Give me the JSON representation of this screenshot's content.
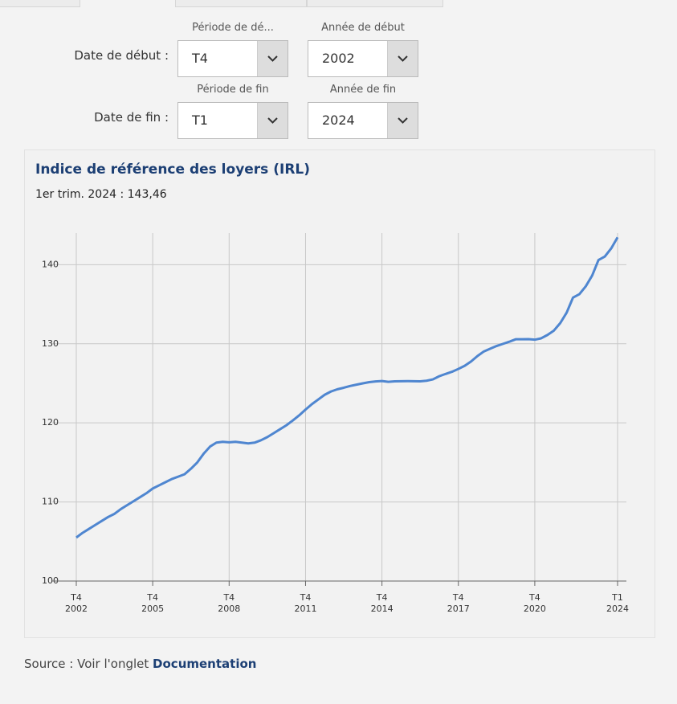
{
  "form": {
    "rows": [
      {
        "label": "Date de début :",
        "period_label": "Période de dé...",
        "period_value": "T4",
        "year_label": "Année de début",
        "year_value": "2002"
      },
      {
        "label": "Date de fin :",
        "period_label": "Période de fin",
        "period_value": "T1",
        "year_label": "Année de fin",
        "year_value": "2024"
      }
    ]
  },
  "chart_data": {
    "type": "line",
    "title": "Indice de référence des loyers (IRL)",
    "subtitle": "1er trim. 2024 : 143,46",
    "color": "#4f86d0",
    "grid": true,
    "categories": [
      "T4 2002",
      null,
      null,
      null,
      null,
      null,
      null,
      null,
      null,
      null,
      null,
      null,
      "T4 2005",
      null,
      null,
      null,
      null,
      null,
      null,
      null,
      null,
      null,
      null,
      null,
      "T4 2008",
      null,
      null,
      null,
      null,
      null,
      null,
      null,
      null,
      null,
      null,
      null,
      "T4 2011",
      null,
      null,
      null,
      null,
      null,
      null,
      null,
      null,
      null,
      null,
      null,
      "T4 2014",
      null,
      null,
      null,
      null,
      null,
      null,
      null,
      null,
      null,
      null,
      null,
      "T4 2017",
      null,
      null,
      null,
      null,
      null,
      null,
      null,
      null,
      null,
      null,
      null,
      "T4 2020",
      null,
      null,
      null,
      null,
      null,
      null,
      null,
      null,
      null,
      null,
      null,
      null,
      "T1 2024"
    ],
    "values": [
      105.5,
      106.1,
      106.6,
      107.1,
      107.6,
      108.1,
      108.5,
      109.1,
      109.6,
      110.1,
      110.6,
      111.1,
      111.7,
      112.1,
      112.5,
      112.9,
      113.2,
      113.5,
      114.2,
      115.0,
      116.1,
      117.0,
      117.5,
      117.6,
      117.54,
      117.6,
      117.5,
      117.4,
      117.5,
      117.8,
      118.2,
      118.7,
      119.2,
      119.7,
      120.3,
      120.95,
      121.68,
      122.37,
      122.96,
      123.55,
      123.97,
      124.25,
      124.44,
      124.66,
      124.83,
      125.0,
      125.15,
      125.24,
      125.29,
      125.19,
      125.25,
      125.26,
      125.28,
      125.26,
      125.25,
      125.33,
      125.5,
      125.9,
      126.19,
      126.46,
      126.82,
      127.22,
      127.77,
      128.45,
      129.03,
      129.38,
      129.72,
      129.99,
      130.26,
      130.57,
      130.57,
      130.59,
      130.52,
      130.69,
      131.12,
      131.67,
      132.62,
      133.93,
      135.84,
      136.27,
      137.26,
      138.61,
      140.59,
      141.03,
      142.06,
      143.46
    ],
    "ylim": [
      100,
      144
    ],
    "yticks": [
      100,
      110,
      120,
      130,
      140
    ]
  },
  "source": {
    "text": "Source : Voir l'onglet",
    "link": "Documentation"
  }
}
